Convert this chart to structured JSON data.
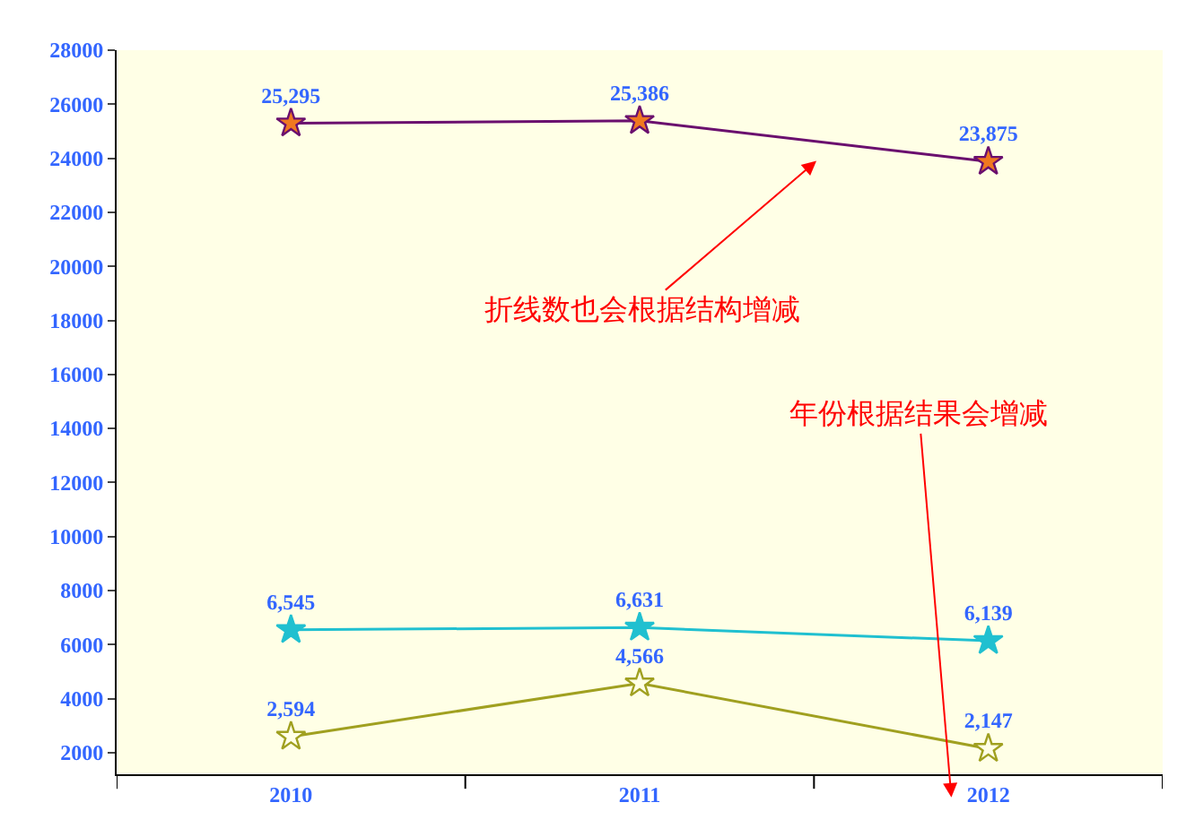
{
  "chart_data": {
    "type": "line",
    "categories": [
      "2010",
      "2011",
      "2012"
    ],
    "series": [
      {
        "color": "#6a0f6e",
        "values": [
          25295,
          25386,
          23875
        ],
        "value_labels": [
          "25,295",
          "25,386",
          "23,875"
        ]
      },
      {
        "color": "#20c0d0",
        "values": [
          6545,
          6631,
          6139
        ],
        "value_labels": [
          "6,545",
          "6,631",
          "6,139"
        ]
      },
      {
        "color": "#a0a020",
        "values": [
          2594,
          4566,
          2147
        ],
        "value_labels": [
          "2,594",
          "4,566",
          "2,147"
        ]
      }
    ],
    "ylim": [
      1200,
      28000
    ],
    "yticks": [
      2000,
      4000,
      6000,
      8000,
      10000,
      12000,
      14000,
      16000,
      18000,
      20000,
      22000,
      24000,
      26000,
      28000
    ],
    "marker": "star",
    "line_style": "solid",
    "grid": false,
    "annotations": [
      "折线数也会根据结构增减",
      "年份根据结果会增减"
    ]
  }
}
